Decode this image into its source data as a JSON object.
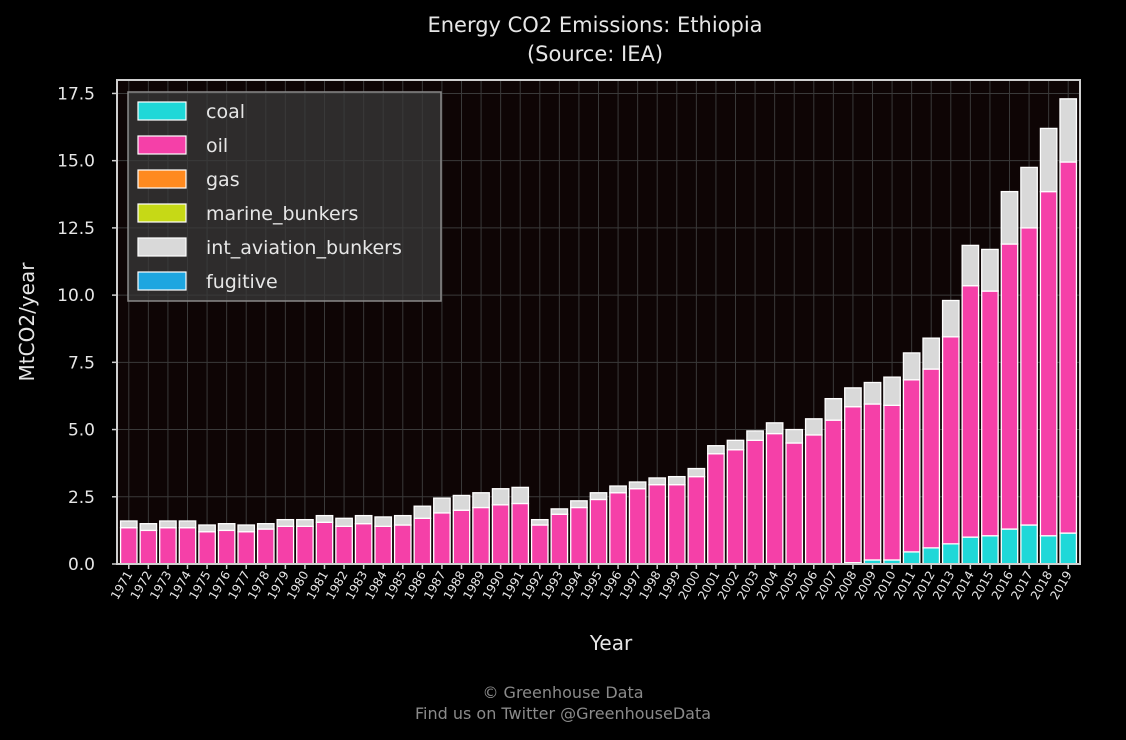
{
  "chart_data": {
    "type": "bar",
    "stacked": true,
    "title": "Energy CO2 Emissions: Ethiopia",
    "subtitle": "(Source: IEA)",
    "xlabel": "Year",
    "ylabel": "MtCO2/year",
    "ylim": [
      0,
      18.0
    ],
    "yticks": [
      "0.0",
      "2.5",
      "5.0",
      "7.5",
      "10.0",
      "12.5",
      "15.0",
      "17.5"
    ],
    "ytick_values": [
      0,
      2.5,
      5.0,
      7.5,
      10.0,
      12.5,
      15.0,
      17.5
    ],
    "grid": true,
    "legend_position": "top-left",
    "categories": [
      "1971",
      "1972",
      "1973",
      "1974",
      "1975",
      "1976",
      "1977",
      "1978",
      "1979",
      "1980",
      "1981",
      "1982",
      "1983",
      "1984",
      "1985",
      "1986",
      "1987",
      "1988",
      "1989",
      "1990",
      "1991",
      "1992",
      "1993",
      "1994",
      "1995",
      "1996",
      "1997",
      "1998",
      "1999",
      "2000",
      "2001",
      "2002",
      "2003",
      "2004",
      "2005",
      "2006",
      "2007",
      "2008",
      "2009",
      "2010",
      "2011",
      "2012",
      "2013",
      "2014",
      "2015",
      "2016",
      "2017",
      "2018",
      "2019"
    ],
    "series": [
      {
        "name": "coal",
        "color": "#1fd8d8",
        "values": [
          0,
          0,
          0,
          0,
          0,
          0,
          0,
          0,
          0,
          0,
          0,
          0,
          0,
          0,
          0,
          0,
          0,
          0,
          0,
          0,
          0,
          0,
          0,
          0,
          0,
          0,
          0,
          0,
          0,
          0,
          0,
          0,
          0,
          0,
          0,
          0,
          0,
          0.05,
          0.15,
          0.15,
          0.45,
          0.6,
          0.75,
          1.0,
          1.05,
          1.3,
          1.45,
          1.05,
          1.15
        ]
      },
      {
        "name": "oil",
        "color": "#f540a8",
        "values": [
          1.35,
          1.25,
          1.35,
          1.35,
          1.2,
          1.25,
          1.2,
          1.3,
          1.4,
          1.4,
          1.55,
          1.4,
          1.5,
          1.4,
          1.45,
          1.7,
          1.9,
          2.0,
          2.1,
          2.2,
          2.25,
          1.45,
          1.85,
          2.1,
          2.4,
          2.65,
          2.8,
          2.95,
          2.95,
          3.25,
          4.1,
          4.25,
          4.6,
          4.85,
          4.5,
          4.8,
          5.35,
          5.8,
          5.8,
          5.75,
          6.4,
          6.65,
          7.7,
          9.35,
          9.1,
          10.6,
          11.05,
          12.8,
          13.8
        ]
      },
      {
        "name": "gas",
        "color": "#ff8a1f",
        "values": [
          0,
          0,
          0,
          0,
          0,
          0,
          0,
          0,
          0,
          0,
          0,
          0,
          0,
          0,
          0,
          0,
          0,
          0,
          0,
          0,
          0,
          0,
          0,
          0,
          0,
          0,
          0,
          0,
          0,
          0,
          0,
          0,
          0,
          0,
          0,
          0,
          0,
          0,
          0,
          0,
          0,
          0,
          0,
          0,
          0,
          0,
          0,
          0,
          0
        ]
      },
      {
        "name": "marine_bunkers",
        "color": "#c6d916",
        "values": [
          0,
          0,
          0,
          0,
          0,
          0,
          0,
          0,
          0,
          0,
          0,
          0,
          0,
          0,
          0,
          0,
          0,
          0,
          0,
          0,
          0,
          0,
          0,
          0,
          0,
          0,
          0,
          0,
          0,
          0,
          0,
          0,
          0,
          0,
          0,
          0,
          0,
          0,
          0,
          0,
          0,
          0,
          0,
          0,
          0,
          0,
          0,
          0,
          0
        ]
      },
      {
        "name": "int_aviation_bunkers",
        "color": "#d9d9d9",
        "values": [
          0.25,
          0.25,
          0.25,
          0.25,
          0.25,
          0.25,
          0.25,
          0.2,
          0.25,
          0.25,
          0.25,
          0.3,
          0.3,
          0.35,
          0.35,
          0.45,
          0.55,
          0.55,
          0.55,
          0.6,
          0.6,
          0.2,
          0.2,
          0.25,
          0.25,
          0.25,
          0.25,
          0.25,
          0.3,
          0.3,
          0.3,
          0.35,
          0.35,
          0.4,
          0.5,
          0.6,
          0.8,
          0.7,
          0.8,
          1.05,
          1.0,
          1.15,
          1.35,
          1.5,
          1.55,
          1.95,
          2.25,
          2.35,
          2.35
        ]
      },
      {
        "name": "fugitive",
        "color": "#1ea6e0",
        "values": [
          0,
          0,
          0,
          0,
          0,
          0,
          0,
          0,
          0,
          0,
          0,
          0,
          0,
          0,
          0,
          0,
          0,
          0,
          0,
          0,
          0,
          0,
          0,
          0,
          0,
          0,
          0,
          0,
          0,
          0,
          0,
          0,
          0,
          0,
          0,
          0,
          0,
          0,
          0,
          0,
          0,
          0,
          0,
          0,
          0,
          0,
          0,
          0,
          0
        ]
      }
    ]
  },
  "footer": {
    "line1": "© Greenhouse Data",
    "line2": "Find us on Twitter @GreenhouseData"
  }
}
